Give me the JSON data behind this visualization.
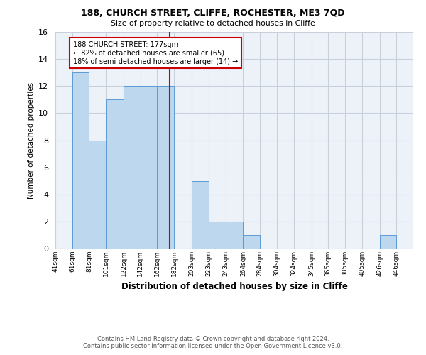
{
  "title1": "188, CHURCH STREET, CLIFFE, ROCHESTER, ME3 7QD",
  "title2": "Size of property relative to detached houses in Cliffe",
  "xlabel": "Distribution of detached houses by size in Cliffe",
  "ylabel": "Number of detached properties",
  "footer1": "Contains HM Land Registry data © Crown copyright and database right 2024.",
  "footer2": "Contains public sector information licensed under the Open Government Licence v3.0.",
  "annotation_line1": "188 CHURCH STREET: 177sqm",
  "annotation_line2": "← 82% of detached houses are smaller (65)",
  "annotation_line3": "18% of semi-detached houses are larger (14) →",
  "bar_color": "#bdd7ee",
  "bar_edge_color": "#5b9bd5",
  "red_line_x": 177,
  "bins": [
    41,
    61,
    81,
    101,
    122,
    142,
    162,
    182,
    203,
    223,
    243,
    264,
    284,
    304,
    324,
    345,
    365,
    385,
    405,
    426,
    446
  ],
  "counts": [
    0,
    13,
    8,
    11,
    12,
    12,
    12,
    0,
    5,
    2,
    2,
    1,
    0,
    0,
    0,
    0,
    0,
    0,
    0,
    1,
    0
  ],
  "ylim": [
    0,
    16
  ],
  "yticks": [
    0,
    2,
    4,
    6,
    8,
    10,
    12,
    14,
    16
  ],
  "grid_color": "#c8d0dc",
  "background_color": "#edf2f9",
  "annotation_box_edge_color": "#cc0000",
  "red_line_color": "#cc0000",
  "title_fontsize": 9,
  "subtitle_fontsize": 8
}
